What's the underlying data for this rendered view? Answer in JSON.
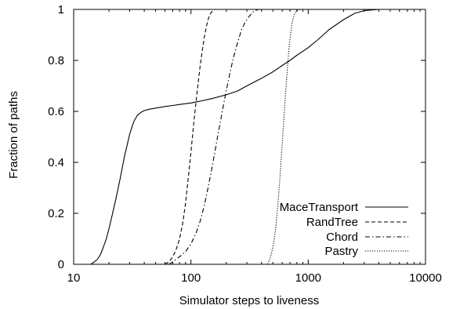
{
  "chart_data": {
    "type": "line",
    "title": "",
    "xlabel": "Simulator steps to liveness",
    "ylabel": "Fraction of paths",
    "xscale": "log",
    "xlim": [
      10,
      10000
    ],
    "ylim": [
      0,
      1
    ],
    "xticks": [
      10,
      100,
      1000,
      10000
    ],
    "xtick_labels": [
      "10",
      "100",
      "1000",
      "10000"
    ],
    "yticks": [
      0,
      0.2,
      0.4,
      0.6,
      0.8,
      1
    ],
    "ytick_labels": [
      "0",
      "0.2",
      "0.4",
      "0.6",
      "0.8",
      "1"
    ],
    "grid": false,
    "legend_position": "bottom-right",
    "series": [
      {
        "name": "MaceTransport",
        "line_style": "solid",
        "x": [
          14,
          15,
          16,
          17,
          18,
          19,
          20,
          21,
          22,
          23,
          24,
          25,
          26,
          27,
          28,
          29,
          30,
          31,
          32,
          33,
          34,
          35,
          36,
          38,
          40,
          43,
          46,
          50,
          55,
          60,
          70,
          80,
          100,
          120,
          150,
          200,
          250,
          300,
          400,
          500,
          600,
          700,
          800,
          1000,
          1200,
          1500,
          2000,
          2500,
          3000,
          4000,
          5000,
          7000
        ],
        "y": [
          0.0,
          0.01,
          0.02,
          0.04,
          0.07,
          0.1,
          0.14,
          0.18,
          0.22,
          0.26,
          0.3,
          0.34,
          0.38,
          0.42,
          0.45,
          0.48,
          0.51,
          0.53,
          0.55,
          0.565,
          0.575,
          0.585,
          0.59,
          0.598,
          0.603,
          0.607,
          0.61,
          0.613,
          0.616,
          0.619,
          0.623,
          0.627,
          0.633,
          0.64,
          0.65,
          0.665,
          0.68,
          0.7,
          0.73,
          0.755,
          0.78,
          0.8,
          0.82,
          0.85,
          0.88,
          0.92,
          0.96,
          0.985,
          0.995,
          1.0,
          1.0,
          1.0
        ]
      },
      {
        "name": "RandTree",
        "line_style": "dashed",
        "x": [
          60,
          65,
          70,
          75,
          80,
          85,
          90,
          95,
          100,
          105,
          110,
          115,
          120,
          125,
          130,
          135,
          140,
          145,
          150,
          160,
          170,
          180,
          190,
          200,
          7000
        ],
        "y": [
          0.0,
          0.01,
          0.03,
          0.06,
          0.1,
          0.16,
          0.24,
          0.34,
          0.44,
          0.54,
          0.63,
          0.71,
          0.78,
          0.84,
          0.89,
          0.93,
          0.96,
          0.98,
          0.99,
          1.0,
          1.0,
          1.0,
          1.0,
          1.0,
          1.0
        ]
      },
      {
        "name": "Chord",
        "line_style": "dash-dot",
        "x": [
          65,
          70,
          80,
          90,
          100,
          110,
          120,
          130,
          140,
          150,
          160,
          170,
          180,
          190,
          200,
          215,
          230,
          250,
          270,
          290,
          310,
          330,
          350,
          380,
          400,
          7000
        ],
        "y": [
          0.0,
          0.01,
          0.03,
          0.05,
          0.08,
          0.12,
          0.17,
          0.23,
          0.3,
          0.37,
          0.44,
          0.51,
          0.57,
          0.63,
          0.68,
          0.75,
          0.81,
          0.87,
          0.92,
          0.95,
          0.97,
          0.985,
          0.995,
          1.0,
          1.0,
          1.0
        ]
      },
      {
        "name": "Pastry",
        "line_style": "dotted",
        "x": [
          450,
          470,
          490,
          510,
          530,
          550,
          570,
          590,
          610,
          630,
          650,
          670,
          690,
          710,
          730,
          760,
          800,
          850,
          900,
          7000
        ],
        "y": [
          0.0,
          0.02,
          0.05,
          0.09,
          0.15,
          0.23,
          0.32,
          0.42,
          0.52,
          0.62,
          0.71,
          0.79,
          0.86,
          0.91,
          0.95,
          0.98,
          0.995,
          1.0,
          1.0,
          1.0
        ]
      }
    ]
  }
}
